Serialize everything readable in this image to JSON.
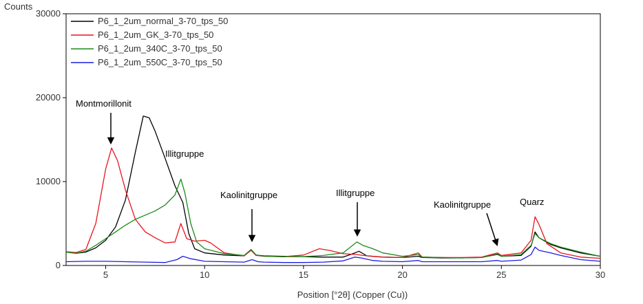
{
  "chart_data": {
    "type": "line",
    "ylabel": "Counts",
    "xlabel": "Position [°2θ] (Copper (Cu))",
    "xlim": [
      3,
      30
    ],
    "ylim": [
      0,
      30000
    ],
    "x_ticks": [
      5,
      10,
      15,
      20,
      25,
      30
    ],
    "y_ticks": [
      0,
      10000,
      20000,
      30000
    ],
    "x_tick_labels": [
      "5",
      "10",
      "15",
      "20",
      "25",
      "30"
    ],
    "y_tick_labels": [
      "0",
      "10000",
      "20000",
      "30000"
    ],
    "grid": false,
    "legend_position": "top-left",
    "series": [
      {
        "name": "P6_1_2um_normal_3-70_tps_50",
        "color": "#000000",
        "points": [
          [
            3,
            1600
          ],
          [
            3.5,
            1450
          ],
          [
            4,
            1600
          ],
          [
            4.5,
            2100
          ],
          [
            5,
            3000
          ],
          [
            5.5,
            4600
          ],
          [
            6,
            7800
          ],
          [
            6.5,
            13500
          ],
          [
            6.9,
            17800
          ],
          [
            7.2,
            17600
          ],
          [
            7.5,
            16000
          ],
          [
            8,
            12800
          ],
          [
            8.5,
            9500
          ],
          [
            8.9,
            7500
          ],
          [
            9.2,
            3800
          ],
          [
            9.5,
            2000
          ],
          [
            10,
            1500
          ],
          [
            11,
            1250
          ],
          [
            12,
            1150
          ],
          [
            12.35,
            1900
          ],
          [
            12.6,
            1250
          ],
          [
            13,
            1150
          ],
          [
            14,
            1100
          ],
          [
            15,
            1050
          ],
          [
            16,
            1000
          ],
          [
            17,
            1000
          ],
          [
            17.6,
            1500
          ],
          [
            17.8,
            1700
          ],
          [
            18.2,
            1150
          ],
          [
            19,
            1000
          ],
          [
            20,
            950
          ],
          [
            20.8,
            1100
          ],
          [
            21,
            950
          ],
          [
            22,
            900
          ],
          [
            23,
            900
          ],
          [
            24,
            950
          ],
          [
            24.8,
            1350
          ],
          [
            25,
            1100
          ],
          [
            26,
            1200
          ],
          [
            26.5,
            2300
          ],
          [
            26.7,
            4000
          ],
          [
            26.9,
            3300
          ],
          [
            27.5,
            2500
          ],
          [
            28,
            2100
          ],
          [
            29,
            1500
          ],
          [
            30,
            1100
          ]
        ]
      },
      {
        "name": "P6_1_2um_GK_3-70_tps_50",
        "color": "#e8141c",
        "points": [
          [
            3,
            1650
          ],
          [
            3.5,
            1550
          ],
          [
            4,
            1900
          ],
          [
            4.5,
            5000
          ],
          [
            5,
            11500
          ],
          [
            5.3,
            14000
          ],
          [
            5.6,
            12500
          ],
          [
            6,
            9000
          ],
          [
            6.5,
            5500
          ],
          [
            7,
            4000
          ],
          [
            7.5,
            3300
          ],
          [
            8,
            2700
          ],
          [
            8.5,
            2800
          ],
          [
            8.8,
            5000
          ],
          [
            9.1,
            3200
          ],
          [
            9.5,
            2900
          ],
          [
            10,
            3000
          ],
          [
            10.3,
            2700
          ],
          [
            11,
            1500
          ],
          [
            12,
            1150
          ],
          [
            12.35,
            1800
          ],
          [
            12.6,
            1200
          ],
          [
            13,
            1100
          ],
          [
            14,
            1050
          ],
          [
            15,
            1250
          ],
          [
            15.8,
            2000
          ],
          [
            16.3,
            1800
          ],
          [
            17,
            1400
          ],
          [
            17.7,
            1300
          ],
          [
            18,
            1200
          ],
          [
            19,
            1000
          ],
          [
            20,
            950
          ],
          [
            20.8,
            1500
          ],
          [
            21,
            1000
          ],
          [
            22,
            950
          ],
          [
            23,
            950
          ],
          [
            24,
            1000
          ],
          [
            24.8,
            1500
          ],
          [
            25,
            1200
          ],
          [
            26,
            1500
          ],
          [
            26.5,
            3000
          ],
          [
            26.7,
            5800
          ],
          [
            26.9,
            4900
          ],
          [
            27.3,
            2600
          ],
          [
            28,
            1500
          ],
          [
            29,
            1000
          ],
          [
            30,
            850
          ]
        ]
      },
      {
        "name": "P6_1_2um_340C_3-70_tps_50",
        "color": "#1a8a1a",
        "points": [
          [
            3,
            1600
          ],
          [
            3.5,
            1450
          ],
          [
            4,
            1700
          ],
          [
            4.5,
            2400
          ],
          [
            5,
            3200
          ],
          [
            5.5,
            4000
          ],
          [
            6,
            4800
          ],
          [
            6.5,
            5500
          ],
          [
            7,
            6000
          ],
          [
            7.5,
            6500
          ],
          [
            8,
            7200
          ],
          [
            8.5,
            8400
          ],
          [
            8.8,
            10300
          ],
          [
            9,
            8700
          ],
          [
            9.3,
            5000
          ],
          [
            9.6,
            2800
          ],
          [
            10,
            2000
          ],
          [
            11,
            1400
          ],
          [
            12,
            1200
          ],
          [
            12.35,
            1900
          ],
          [
            12.6,
            1250
          ],
          [
            13,
            1100
          ],
          [
            14,
            1050
          ],
          [
            15,
            1050
          ],
          [
            16,
            1200
          ],
          [
            17,
            1500
          ],
          [
            17.7,
            2800
          ],
          [
            18,
            2400
          ],
          [
            18.5,
            2000
          ],
          [
            19,
            1500
          ],
          [
            20,
            1100
          ],
          [
            20.8,
            1300
          ],
          [
            21,
            1000
          ],
          [
            22,
            950
          ],
          [
            23,
            900
          ],
          [
            24,
            950
          ],
          [
            24.8,
            1300
          ],
          [
            25,
            1100
          ],
          [
            26,
            1300
          ],
          [
            26.5,
            2400
          ],
          [
            26.7,
            3800
          ],
          [
            26.9,
            3300
          ],
          [
            27.5,
            2600
          ],
          [
            28,
            2200
          ],
          [
            29,
            1600
          ],
          [
            30,
            1100
          ]
        ]
      },
      {
        "name": "P6_1_2um_550C_3-70_tps_50",
        "color": "#1c1ce0",
        "points": [
          [
            3,
            450
          ],
          [
            4,
            500
          ],
          [
            5,
            500
          ],
          [
            6,
            450
          ],
          [
            7,
            400
          ],
          [
            8,
            350
          ],
          [
            8.6,
            700
          ],
          [
            8.9,
            1100
          ],
          [
            9.3,
            800
          ],
          [
            10,
            500
          ],
          [
            11,
            450
          ],
          [
            12,
            400
          ],
          [
            12.4,
            700
          ],
          [
            12.7,
            450
          ],
          [
            13,
            400
          ],
          [
            14,
            350
          ],
          [
            15,
            350
          ],
          [
            16,
            400
          ],
          [
            17,
            550
          ],
          [
            17.6,
            1000
          ],
          [
            17.9,
            900
          ],
          [
            18.5,
            600
          ],
          [
            19,
            500
          ],
          [
            20,
            450
          ],
          [
            20.8,
            600
          ],
          [
            21,
            450
          ],
          [
            22,
            450
          ],
          [
            23,
            450
          ],
          [
            24,
            450
          ],
          [
            24.8,
            600
          ],
          [
            25,
            500
          ],
          [
            26,
            650
          ],
          [
            26.5,
            1300
          ],
          [
            26.7,
            2200
          ],
          [
            26.9,
            1800
          ],
          [
            27.5,
            1500
          ],
          [
            28,
            1200
          ],
          [
            29,
            700
          ],
          [
            30,
            500
          ]
        ]
      }
    ],
    "annotations": [
      {
        "text": "Montmorillonit",
        "arrow": true
      },
      {
        "text": "Illitgruppe",
        "arrow": false
      },
      {
        "text": "Kaolinitgruppe",
        "arrow": true
      },
      {
        "text": "Illitgruppe",
        "arrow": true
      },
      {
        "text": "Kaolinitgruppe",
        "arrow": true
      },
      {
        "text": "Quarz",
        "arrow": false
      }
    ]
  }
}
